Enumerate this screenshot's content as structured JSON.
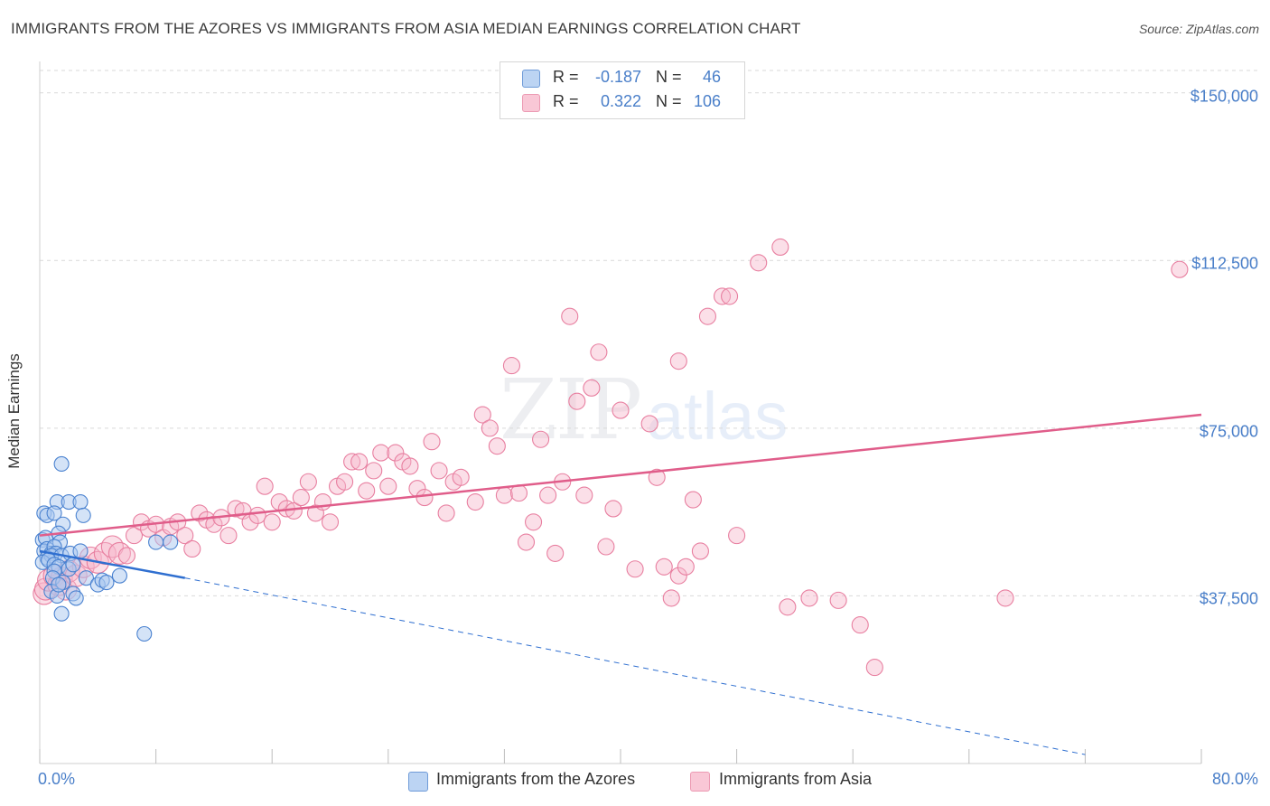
{
  "header": {
    "title": "IMMIGRANTS FROM THE AZORES VS IMMIGRANTS FROM ASIA MEDIAN EARNINGS CORRELATION CHART",
    "source": "Source: ZipAtlas.com"
  },
  "watermark": {
    "zip": "ZIP",
    "atlas": "atlas"
  },
  "legend": {
    "rows": [
      {
        "r_label": "R =",
        "r_value": "-0.187",
        "n_label": "N =",
        "n_value": "46"
      },
      {
        "r_label": "R =",
        "r_value": "0.322",
        "n_label": "N =",
        "n_value": "106"
      }
    ]
  },
  "bottom_legend": {
    "azores": "Immigrants from the Azores",
    "asia": "Immigrants from Asia"
  },
  "colors": {
    "azores_fill": "#aac8f0",
    "azores_stroke": "#4a82d0",
    "azores_line": "#2f6fd0",
    "asia_fill": "#f7b8cb",
    "asia_stroke": "#e87fa0",
    "asia_line": "#e05d8a",
    "tick_text": "#4a7fc9",
    "grid": "#d9d9d9"
  },
  "chart_data": {
    "type": "scatter",
    "title": "IMMIGRANTS FROM THE AZORES VS IMMIGRANTS FROM ASIA MEDIAN EARNINGS CORRELATION CHART",
    "xlabel": "",
    "ylabel": "Median Earnings",
    "xlim": [
      0,
      80
    ],
    "ylim": [
      0,
      155000
    ],
    "x_tick_labels": [
      "0.0%",
      "80.0%"
    ],
    "y_ticks": [
      37500,
      75000,
      112500,
      150000
    ],
    "y_tick_labels": [
      "$37,500",
      "$75,000",
      "$112,500",
      "$150,000"
    ],
    "grid": "horizontal dashed",
    "legend_position": "top-center",
    "series": [
      {
        "name": "Immigrants from the Azores",
        "r": -0.187,
        "n": 46,
        "trend": {
          "x": [
            0,
            10
          ],
          "y": [
            47500,
            41500
          ],
          "dashed_extension_to": [
            72,
            2000
          ]
        },
        "points": [
          [
            0.3,
            56000
          ],
          [
            0.5,
            55500
          ],
          [
            1.2,
            58500
          ],
          [
            1.0,
            56000
          ],
          [
            1.6,
            53500
          ],
          [
            2.0,
            58500
          ],
          [
            2.8,
            58500
          ],
          [
            1.5,
            67000
          ],
          [
            0.2,
            50000
          ],
          [
            0.4,
            50500
          ],
          [
            1.3,
            51500
          ],
          [
            1.4,
            49500
          ],
          [
            0.3,
            47500
          ],
          [
            0.5,
            48000
          ],
          [
            0.8,
            47000
          ],
          [
            1.0,
            48500
          ],
          [
            1.1,
            47000
          ],
          [
            0.5,
            46000
          ],
          [
            0.8,
            46500
          ],
          [
            1.5,
            46500
          ],
          [
            2.1,
            47000
          ],
          [
            2.8,
            47500
          ],
          [
            0.2,
            45000
          ],
          [
            0.6,
            45500
          ],
          [
            1.0,
            44500
          ],
          [
            1.3,
            44000
          ],
          [
            2.0,
            43500
          ],
          [
            2.3,
            44500
          ],
          [
            1.0,
            43000
          ],
          [
            0.9,
            41500
          ],
          [
            1.6,
            40500
          ],
          [
            0.8,
            38500
          ],
          [
            1.2,
            37500
          ],
          [
            1.3,
            40000
          ],
          [
            2.3,
            38000
          ],
          [
            2.5,
            37000
          ],
          [
            3.2,
            41500
          ],
          [
            4.0,
            40000
          ],
          [
            4.3,
            41000
          ],
          [
            4.6,
            40500
          ],
          [
            3.0,
            55500
          ],
          [
            5.5,
            42000
          ],
          [
            8.0,
            49500
          ],
          [
            9.0,
            49500
          ],
          [
            1.5,
            33500
          ],
          [
            7.2,
            29000
          ]
        ]
      },
      {
        "name": "Immigrants from Asia",
        "r": 0.322,
        "n": 106,
        "trend": {
          "x": [
            0,
            80
          ],
          "y": [
            51000,
            78000
          ]
        },
        "points": [
          [
            0.3,
            38000
          ],
          [
            0.4,
            39000
          ],
          [
            0.6,
            41000
          ],
          [
            1.0,
            42000
          ],
          [
            1.3,
            40000
          ],
          [
            1.5,
            41500
          ],
          [
            1.8,
            39000
          ],
          [
            2.0,
            43000
          ],
          [
            2.5,
            42000
          ],
          [
            3.0,
            44000
          ],
          [
            3.5,
            46000
          ],
          [
            4.0,
            45000
          ],
          [
            4.5,
            47000
          ],
          [
            5.0,
            48500
          ],
          [
            5.5,
            47000
          ],
          [
            6.0,
            46500
          ],
          [
            6.5,
            51000
          ],
          [
            7.0,
            54000
          ],
          [
            7.5,
            52500
          ],
          [
            8.0,
            53500
          ],
          [
            8.5,
            50500
          ],
          [
            9.0,
            53000
          ],
          [
            9.5,
            54000
          ],
          [
            10.0,
            51000
          ],
          [
            10.5,
            48000
          ],
          [
            11.0,
            56000
          ],
          [
            11.5,
            54500
          ],
          [
            12.0,
            53500
          ],
          [
            12.5,
            55000
          ],
          [
            13.0,
            51000
          ],
          [
            13.5,
            57000
          ],
          [
            14.0,
            56500
          ],
          [
            14.5,
            54000
          ],
          [
            15.0,
            55500
          ],
          [
            15.5,
            62000
          ],
          [
            16.0,
            54000
          ],
          [
            16.5,
            58500
          ],
          [
            17.0,
            57000
          ],
          [
            17.5,
            56500
          ],
          [
            18.0,
            59500
          ],
          [
            18.5,
            63000
          ],
          [
            19.0,
            56000
          ],
          [
            19.5,
            58500
          ],
          [
            20.0,
            54000
          ],
          [
            20.5,
            62000
          ],
          [
            21.0,
            63000
          ],
          [
            21.5,
            67500
          ],
          [
            22.0,
            67500
          ],
          [
            22.5,
            61000
          ],
          [
            23.0,
            65500
          ],
          [
            23.5,
            69500
          ],
          [
            24.0,
            62000
          ],
          [
            24.5,
            69500
          ],
          [
            25.0,
            67500
          ],
          [
            25.5,
            66500
          ],
          [
            26.0,
            61500
          ],
          [
            26.5,
            59500
          ],
          [
            27.0,
            72000
          ],
          [
            27.5,
            65500
          ],
          [
            28.0,
            56000
          ],
          [
            28.5,
            63000
          ],
          [
            29.0,
            64000
          ],
          [
            30.0,
            58500
          ],
          [
            30.5,
            78000
          ],
          [
            31.0,
            75000
          ],
          [
            31.5,
            71000
          ],
          [
            32.0,
            60000
          ],
          [
            32.5,
            89000
          ],
          [
            33.0,
            60500
          ],
          [
            33.5,
            49500
          ],
          [
            34.0,
            54000
          ],
          [
            34.5,
            72500
          ],
          [
            35.0,
            60000
          ],
          [
            35.5,
            47000
          ],
          [
            36.0,
            63000
          ],
          [
            36.5,
            100000
          ],
          [
            37.0,
            81000
          ],
          [
            37.5,
            60000
          ],
          [
            38.0,
            84000
          ],
          [
            38.5,
            92000
          ],
          [
            39.0,
            48500
          ],
          [
            39.5,
            57000
          ],
          [
            40.0,
            79000
          ],
          [
            41.0,
            43500
          ],
          [
            42.0,
            76000
          ],
          [
            42.5,
            64000
          ],
          [
            43.0,
            44000
          ],
          [
            43.5,
            37000
          ],
          [
            44.0,
            42000
          ],
          [
            44.5,
            44000
          ],
          [
            45.0,
            59000
          ],
          [
            45.5,
            47500
          ],
          [
            46.0,
            100000
          ],
          [
            47.0,
            104500
          ],
          [
            47.5,
            104500
          ],
          [
            48.0,
            51000
          ],
          [
            49.5,
            112000
          ],
          [
            51.0,
            115500
          ],
          [
            51.5,
            35000
          ],
          [
            53.0,
            37000
          ],
          [
            55.0,
            36500
          ],
          [
            56.5,
            31000
          ],
          [
            57.5,
            21500
          ],
          [
            66.5,
            37000
          ],
          [
            78.5,
            110500
          ],
          [
            44.0,
            90000
          ]
        ]
      }
    ]
  }
}
